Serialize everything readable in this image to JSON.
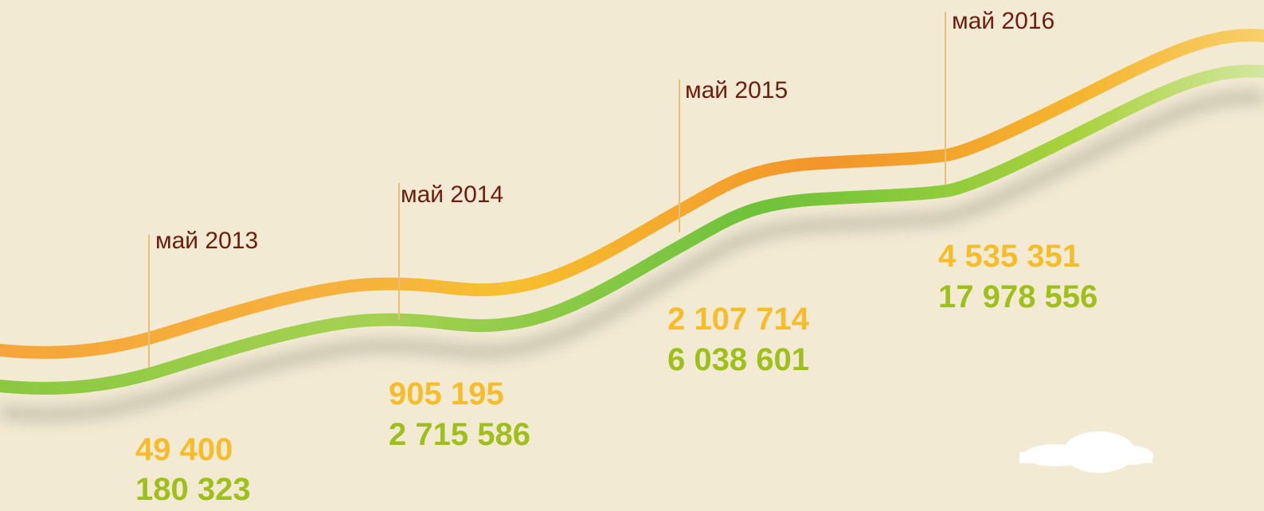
{
  "milestones": [
    {
      "date": "май 2013",
      "value_orange": "49 400",
      "value_green": "180 323"
    },
    {
      "date": "май 2014",
      "value_orange": "905 195",
      "value_green": "2 715 586"
    },
    {
      "date": "май 2015",
      "value_orange": "2 107 714",
      "value_green": "6 038 601"
    },
    {
      "date": "май 2016",
      "value_orange": "4 535 351",
      "value_green": "17 978 556"
    }
  ]
}
